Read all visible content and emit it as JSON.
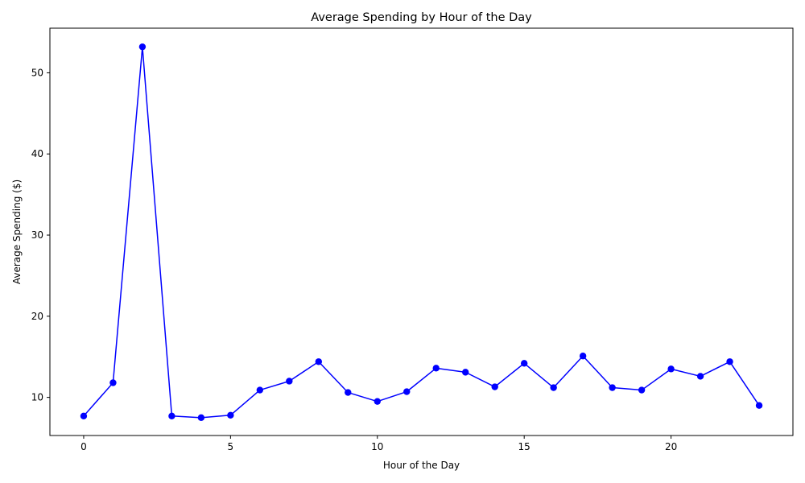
{
  "chart_data": {
    "type": "line",
    "title": "Average Spending by Hour of the Day",
    "xlabel": "Hour of the Day",
    "ylabel": "Average Spending ($)",
    "xlim": [
      -1.15,
      24.15
    ],
    "ylim": [
      5.3,
      55.5
    ],
    "xticks": [
      0,
      5,
      10,
      15,
      20
    ],
    "yticks": [
      10,
      20,
      30,
      40,
      50
    ],
    "grid": false,
    "series": [
      {
        "color": "#0000ff",
        "marker": "circle",
        "x": [
          0,
          1,
          2,
          3,
          4,
          5,
          6,
          7,
          8,
          9,
          10,
          11,
          12,
          13,
          14,
          15,
          16,
          17,
          18,
          19,
          20,
          21,
          22,
          23
        ],
        "y": [
          7.7,
          11.8,
          53.2,
          7.7,
          7.5,
          7.8,
          10.9,
          12.0,
          14.4,
          10.6,
          9.5,
          10.7,
          13.6,
          13.1,
          11.3,
          14.2,
          11.2,
          15.1,
          11.2,
          10.9,
          13.5,
          12.6,
          14.4,
          9.0
        ]
      }
    ]
  }
}
